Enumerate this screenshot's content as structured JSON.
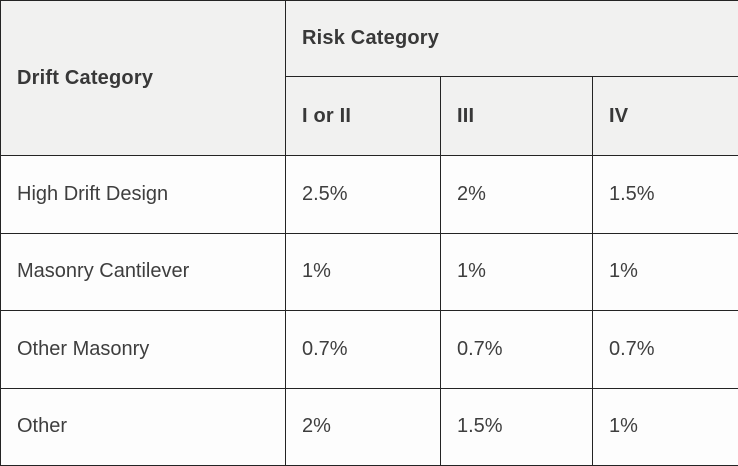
{
  "table": {
    "corner_header": "Drift Category",
    "group_header": "Risk Category",
    "sub_headers": [
      "I or II",
      "III",
      "IV"
    ],
    "rows": [
      {
        "label": "High Drift Design",
        "values": [
          "2.5%",
          "2%",
          "1.5%"
        ]
      },
      {
        "label": "Masonry Cantilever",
        "values": [
          "1%",
          "1%",
          "1%"
        ]
      },
      {
        "label": "Other Masonry",
        "values": [
          "0.7%",
          "0.7%",
          "0.7%"
        ]
      },
      {
        "label": "Other",
        "values": [
          "2%",
          "1.5%",
          "1%"
        ]
      }
    ],
    "colors": {
      "header_bg": "#f1f1f0",
      "body_bg": "#fdfdfd",
      "border": "#242424",
      "header_text": "#383838",
      "body_text": "#3e3e3e"
    }
  },
  "chart_data": {
    "type": "table",
    "title": "",
    "column_group_label": "Risk Category",
    "columns": [
      "Drift Category",
      "I or II",
      "III",
      "IV"
    ],
    "rows": [
      [
        "High Drift Design",
        "2.5%",
        "2%",
        "1.5%"
      ],
      [
        "Masonry Cantilever",
        "1%",
        "1%",
        "1%"
      ],
      [
        "Other Masonry",
        "0.7%",
        "0.7%",
        "0.7%"
      ],
      [
        "Other",
        "2%",
        "1.5%",
        "1%"
      ]
    ]
  }
}
